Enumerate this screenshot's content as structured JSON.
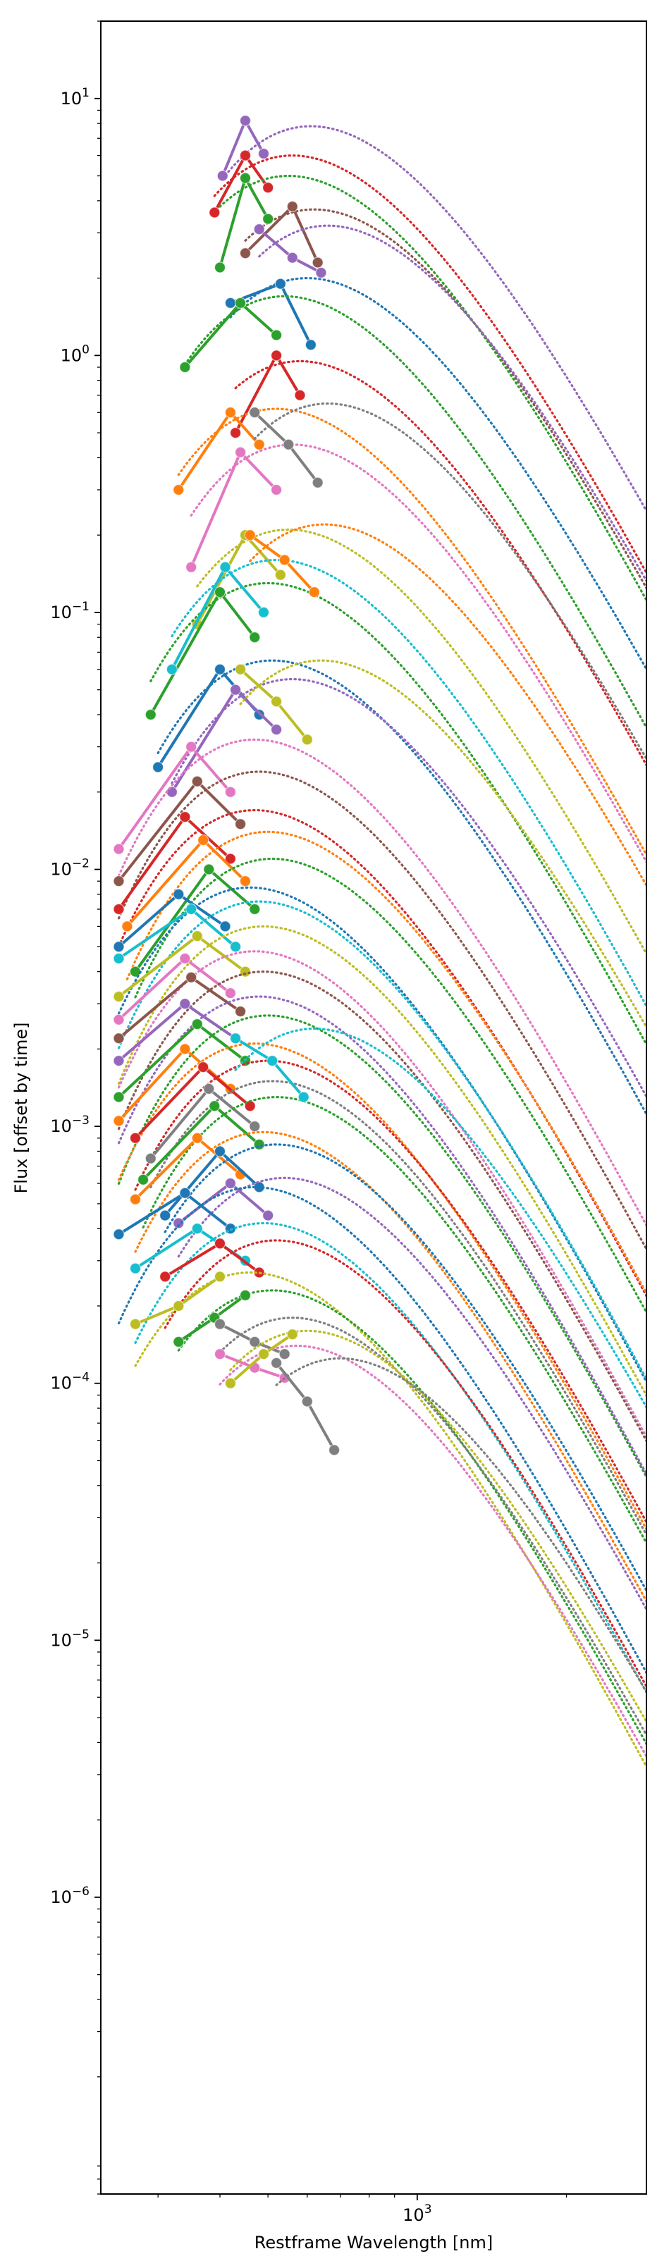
{
  "chart_data": {
    "type": "line",
    "title": "",
    "xlabel": "Restframe Wavelength [nm]",
    "ylabel": "Flux [offset by time]",
    "xscale": "log",
    "yscale": "log",
    "xlim": [
      230,
      2900
    ],
    "ylim": [
      7e-08,
      20
    ],
    "grid": false,
    "legend": "none",
    "x_ticks": [
      {
        "value": 1000,
        "label": "10^3"
      }
    ],
    "y_ticks": [
      {
        "value": 1e-06,
        "label": "10^-6"
      },
      {
        "value": 1e-05,
        "label": "10^-5"
      },
      {
        "value": 0.0001,
        "label": "10^-4"
      },
      {
        "value": 0.001,
        "label": "10^-3"
      },
      {
        "value": 0.01,
        "label": "10^-2"
      },
      {
        "value": 0.1,
        "label": "10^-1"
      },
      {
        "value": 1,
        "label": "10^0"
      },
      {
        "value": 10,
        "label": "10^1"
      }
    ],
    "colors": [
      "#1f77b4",
      "#ff7f0e",
      "#2ca02c",
      "#d62728",
      "#9467bd",
      "#8c564b",
      "#e377c2",
      "#7f7f7f",
      "#bcbd22",
      "#17becf"
    ],
    "series_note": "observed photometry (solid lines with circle markers) and dotted blackbody model curves, one pair per epoch",
    "series": [
      {
        "color": "#9467bd",
        "observed": [
          [
            405,
            5.0
          ],
          [
            450,
            8.2
          ],
          [
            490,
            6.1
          ]
        ],
        "model": {
          "peak_x": 610,
          "peak_y": 7.8
        }
      },
      {
        "color": "#d62728",
        "observed": [
          [
            390,
            3.6
          ],
          [
            450,
            6.0
          ],
          [
            500,
            4.5
          ]
        ],
        "model": {
          "peak_x": 560,
          "peak_y": 6.0
        }
      },
      {
        "color": "#8c564b",
        "observed": [
          [
            450,
            2.5
          ],
          [
            560,
            3.8
          ],
          [
            630,
            2.3
          ]
        ],
        "model": {
          "peak_x": 620,
          "peak_y": 3.7
        }
      },
      {
        "color": "#2ca02c",
        "observed": [
          [
            400,
            2.2
          ],
          [
            450,
            4.9
          ],
          [
            500,
            3.4
          ]
        ],
        "model": {
          "peak_x": 550,
          "peak_y": 5.0
        }
      },
      {
        "color": "#1f77b4",
        "observed": [
          [
            420,
            1.6
          ],
          [
            530,
            1.9
          ],
          [
            610,
            1.1
          ]
        ],
        "model": {
          "peak_x": 600,
          "peak_y": 2.0
        }
      },
      {
        "color": "#2ca02c",
        "observed": [
          [
            340,
            0.9
          ],
          [
            440,
            1.6
          ],
          [
            520,
            1.2
          ]
        ],
        "model": {
          "peak_x": 540,
          "peak_y": 1.7
        }
      },
      {
        "color": "#d62728",
        "observed": [
          [
            430,
            0.5
          ],
          [
            520,
            1.0
          ],
          [
            580,
            0.7
          ]
        ],
        "model": {
          "peak_x": 580,
          "peak_y": 0.95
        }
      },
      {
        "color": "#ff7f0e",
        "observed": [
          [
            330,
            0.3
          ],
          [
            420,
            0.6
          ],
          [
            480,
            0.45
          ]
        ],
        "model": {
          "peak_x": 520,
          "peak_y": 0.62
        }
      },
      {
        "color": "#e377c2",
        "observed": [
          [
            350,
            0.15
          ],
          [
            440,
            0.42
          ],
          [
            520,
            0.3
          ]
        ],
        "model": {
          "peak_x": 560,
          "peak_y": 0.45
        }
      },
      {
        "color": "#bcbd22",
        "observed": [
          [
            360,
            0.09
          ],
          [
            450,
            0.2
          ],
          [
            530,
            0.14
          ]
        ],
        "model": {
          "peak_x": 550,
          "peak_y": 0.21
        }
      },
      {
        "color": "#2ca02c",
        "observed": [
          [
            290,
            0.04
          ],
          [
            400,
            0.12
          ],
          [
            470,
            0.08
          ]
        ],
        "model": {
          "peak_x": 500,
          "peak_y": 0.13
        }
      },
      {
        "color": "#17becf",
        "observed": [
          [
            320,
            0.06
          ],
          [
            410,
            0.15
          ],
          [
            490,
            0.1
          ]
        ],
        "model": {
          "peak_x": 520,
          "peak_y": 0.16
        }
      },
      {
        "color": "#1f77b4",
        "observed": [
          [
            300,
            0.025
          ],
          [
            400,
            0.06
          ],
          [
            480,
            0.04
          ]
        ],
        "model": {
          "peak_x": 510,
          "peak_y": 0.065
        }
      },
      {
        "color": "#9467bd",
        "observed": [
          [
            320,
            0.02
          ],
          [
            430,
            0.05
          ],
          [
            520,
            0.035
          ]
        ],
        "model": {
          "peak_x": 560,
          "peak_y": 0.055
        }
      },
      {
        "color": "#e377c2",
        "observed": [
          [
            250,
            0.012
          ],
          [
            350,
            0.03
          ],
          [
            420,
            0.02
          ]
        ],
        "model": {
          "peak_x": 470,
          "peak_y": 0.032
        }
      },
      {
        "color": "#8c564b",
        "observed": [
          [
            250,
            0.009
          ],
          [
            360,
            0.022
          ],
          [
            440,
            0.015
          ]
        ],
        "model": {
          "peak_x": 480,
          "peak_y": 0.024
        }
      },
      {
        "color": "#d62728",
        "observed": [
          [
            250,
            0.007
          ],
          [
            340,
            0.016
          ],
          [
            420,
            0.011
          ]
        ],
        "model": {
          "peak_x": 470,
          "peak_y": 0.017
        }
      },
      {
        "color": "#ff7f0e",
        "observed": [
          [
            260,
            0.006
          ],
          [
            370,
            0.013
          ],
          [
            450,
            0.009
          ]
        ],
        "model": {
          "peak_x": 500,
          "peak_y": 0.014
        }
      },
      {
        "color": "#2ca02c",
        "observed": [
          [
            270,
            0.004
          ],
          [
            380,
            0.01
          ],
          [
            470,
            0.007
          ]
        ],
        "model": {
          "peak_x": 510,
          "peak_y": 0.011
        }
      },
      {
        "color": "#1f77b4",
        "observed": [
          [
            250,
            0.005
          ],
          [
            330,
            0.008
          ],
          [
            410,
            0.006
          ]
        ],
        "model": {
          "peak_x": 460,
          "peak_y": 0.0085
        }
      },
      {
        "color": "#17becf",
        "observed": [
          [
            250,
            0.0045
          ],
          [
            350,
            0.007
          ],
          [
            430,
            0.005
          ]
        ],
        "model": {
          "peak_x": 480,
          "peak_y": 0.0075
        }
      },
      {
        "color": "#bcbd22",
        "observed": [
          [
            250,
            0.0032
          ],
          [
            360,
            0.0055
          ],
          [
            450,
            0.004
          ]
        ],
        "model": {
          "peak_x": 490,
          "peak_y": 0.006
        }
      },
      {
        "color": "#e377c2",
        "observed": [
          [
            250,
            0.0026
          ],
          [
            340,
            0.0045
          ],
          [
            420,
            0.0033
          ]
        ],
        "model": {
          "peak_x": 470,
          "peak_y": 0.0048
        }
      },
      {
        "color": "#8c564b",
        "observed": [
          [
            250,
            0.0022
          ],
          [
            350,
            0.0038
          ],
          [
            440,
            0.0028
          ]
        ],
        "model": {
          "peak_x": 490,
          "peak_y": 0.004
        }
      },
      {
        "color": "#9467bd",
        "observed": [
          [
            250,
            0.0018
          ],
          [
            340,
            0.003
          ],
          [
            430,
            0.0022
          ]
        ],
        "model": {
          "peak_x": 480,
          "peak_y": 0.0032
        }
      },
      {
        "color": "#2ca02c",
        "observed": [
          [
            250,
            0.0013
          ],
          [
            360,
            0.0025
          ],
          [
            450,
            0.0018
          ]
        ],
        "model": {
          "peak_x": 500,
          "peak_y": 0.0027
        }
      },
      {
        "color": "#ff7f0e",
        "observed": [
          [
            250,
            0.00105
          ],
          [
            340,
            0.002
          ],
          [
            420,
            0.0014
          ]
        ],
        "model": {
          "peak_x": 470,
          "peak_y": 0.0021
        }
      },
      {
        "color": "#d62728",
        "observed": [
          [
            270,
            0.0009
          ],
          [
            370,
            0.0017
          ],
          [
            460,
            0.0012
          ]
        ],
        "model": {
          "peak_x": 500,
          "peak_y": 0.0018
        }
      },
      {
        "color": "#7f7f7f",
        "observed": [
          [
            290,
            0.00075
          ],
          [
            380,
            0.0014
          ],
          [
            470,
            0.001
          ]
        ],
        "model": {
          "peak_x": 510,
          "peak_y": 0.0015
        }
      },
      {
        "color": "#2ca02c",
        "observed": [
          [
            280,
            0.00062
          ],
          [
            390,
            0.0012
          ],
          [
            480,
            0.00085
          ]
        ],
        "model": {
          "peak_x": 520,
          "peak_y": 0.0013
        }
      },
      {
        "color": "#ff7f0e",
        "observed": [
          [
            270,
            0.00052
          ],
          [
            360,
            0.0009
          ],
          [
            440,
            0.00065
          ]
        ],
        "model": {
          "peak_x": 490,
          "peak_y": 0.00095
        }
      },
      {
        "color": "#1f77b4",
        "observed": [
          [
            310,
            0.00045
          ],
          [
            400,
            0.0008
          ],
          [
            480,
            0.00058
          ]
        ],
        "model": {
          "peak_x": 520,
          "peak_y": 0.00085
        }
      },
      {
        "color": "#9467bd",
        "observed": [
          [
            330,
            0.00042
          ],
          [
            420,
            0.0006
          ],
          [
            500,
            0.00045
          ]
        ],
        "model": {
          "peak_x": 540,
          "peak_y": 0.00063
        }
      },
      {
        "color": "#1f77b4",
        "observed": [
          [
            250,
            0.00038
          ],
          [
            340,
            0.00055
          ],
          [
            420,
            0.0004
          ]
        ],
        "model": {
          "peak_x": 470,
          "peak_y": 0.00058
        }
      },
      {
        "color": "#17becf",
        "observed": [
          [
            270,
            0.00028
          ],
          [
            360,
            0.0004
          ],
          [
            450,
            0.0003
          ]
        ],
        "model": {
          "peak_x": 490,
          "peak_y": 0.00042
        }
      },
      {
        "color": "#d62728",
        "observed": [
          [
            310,
            0.00026
          ],
          [
            400,
            0.00035
          ],
          [
            480,
            0.00027
          ]
        ],
        "model": {
          "peak_x": 520,
          "peak_y": 0.00036
        }
      },
      {
        "color": "#bcbd22",
        "observed": [
          [
            270,
            0.00017
          ],
          [
            330,
            0.0002
          ],
          [
            400,
            0.00026
          ]
        ],
        "model": {
          "peak_x": 460,
          "peak_y": 0.00027
        }
      },
      {
        "color": "#2ca02c",
        "observed": [
          [
            330,
            0.000145
          ],
          [
            390,
            0.00018
          ],
          [
            450,
            0.00022
          ]
        ],
        "model": {
          "peak_x": 510,
          "peak_y": 0.00023
        }
      },
      {
        "color": "#7f7f7f",
        "observed": [
          [
            400,
            0.00017
          ],
          [
            470,
            0.000145
          ],
          [
            540,
            0.00013
          ]
        ],
        "model": {
          "peak_x": 560,
          "peak_y": 0.00018
        }
      },
      {
        "color": "#e377c2",
        "observed": [
          [
            400,
            0.00013
          ],
          [
            470,
            0.000115
          ],
          [
            540,
            0.000105
          ]
        ],
        "model": {
          "peak_x": 570,
          "peak_y": 0.00014
        }
      },
      {
        "color": "#bcbd22",
        "observed": [
          [
            420,
            0.0001
          ],
          [
            490,
            0.00013
          ],
          [
            560,
            0.000155
          ]
        ],
        "model": {
          "peak_x": 600,
          "peak_y": 0.00016
        }
      },
      {
        "color": "#7f7f7f",
        "observed": [
          [
            520,
            0.00012
          ],
          [
            600,
            8.5e-05
          ],
          [
            680,
            5.5e-05
          ]
        ],
        "model": {
          "peak_x": 700,
          "peak_y": 0.000125
        }
      },
      {
        "color": "#17becf",
        "observed": [
          [
            430,
            0.0022
          ],
          [
            510,
            0.0018
          ],
          [
            590,
            0.0013
          ]
        ],
        "model": {
          "peak_x": 620,
          "peak_y": 0.0024
        }
      },
      {
        "color": "#bcbd22",
        "observed": [
          [
            440,
            0.06
          ],
          [
            520,
            0.045
          ],
          [
            600,
            0.032
          ]
        ],
        "model": {
          "peak_x": 640,
          "peak_y": 0.065
        }
      },
      {
        "color": "#ff7f0e",
        "observed": [
          [
            460,
            0.2
          ],
          [
            540,
            0.16
          ],
          [
            620,
            0.12
          ]
        ],
        "model": {
          "peak_x": 650,
          "peak_y": 0.22
        }
      },
      {
        "color": "#7f7f7f",
        "observed": [
          [
            470,
            0.6
          ],
          [
            550,
            0.45
          ],
          [
            630,
            0.32
          ]
        ],
        "model": {
          "peak_x": 660,
          "peak_y": 0.65
        }
      },
      {
        "color": "#9467bd",
        "observed": [
          [
            480,
            3.1
          ],
          [
            560,
            2.4
          ],
          [
            640,
            2.1
          ]
        ],
        "model": {
          "peak_x": 660,
          "peak_y": 3.2
        }
      }
    ]
  }
}
